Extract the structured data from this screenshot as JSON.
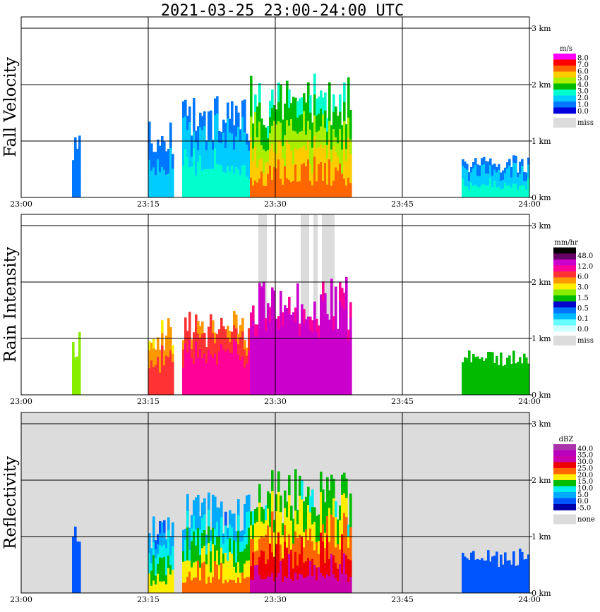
{
  "title": "2021-03-25  23:00-24:00 UTC",
  "x_ticks": [
    "23:00",
    "23:15",
    "23:30",
    "23:45",
    "24:00"
  ],
  "y_ticks": [
    "0 km",
    "1 km",
    "2 km",
    "3 km"
  ],
  "colors": {
    "background": "#ffffff",
    "missing": "#dcdcdc",
    "grid": "#000000"
  },
  "chart_data": [
    {
      "type": "heatmap",
      "ylabel": "Fall Velocity",
      "x_range": [
        "23:00",
        "24:00"
      ],
      "y_range_km": [
        0,
        3.2
      ],
      "grid": true,
      "legend": {
        "unit": "m/s",
        "labels": [
          "8.0",
          "7.0",
          "6.0",
          "5.0",
          "4.0",
          "3.0",
          "2.0",
          "1.0",
          "0.0"
        ],
        "colors": [
          "#ff00ff",
          "#ff0000",
          "#ff6600",
          "#ffcc00",
          "#aaee00",
          "#00bb00",
          "#00ffcc",
          "#00ccff",
          "#0077ff",
          "#0000dd"
        ],
        "missing_label": "miss"
      },
      "echo_summary": [
        {
          "start": "23:06",
          "end": "23:07",
          "top_km": 1.2,
          "values": "1.0-2.0"
        },
        {
          "start": "23:15",
          "end": "23:18",
          "top_km": 1.4,
          "values": "1.0-3.0"
        },
        {
          "start": "23:19",
          "end": "23:27",
          "top_km": 1.8,
          "values": "1.0-4.0"
        },
        {
          "start": "23:27",
          "end": "23:39",
          "top_km": 2.2,
          "values": "3.0-8.0"
        },
        {
          "start": "23:52",
          "end": "24:00",
          "top_km": 0.8,
          "values": "1.0-4.0"
        }
      ]
    },
    {
      "type": "heatmap",
      "ylabel": "Rain Intensity",
      "x_range": [
        "23:00",
        "24:00"
      ],
      "y_range_km": [
        0,
        3.2
      ],
      "grid": true,
      "legend": {
        "unit": "mm/hr",
        "labels": [
          "48.0",
          "12.0",
          "6.0",
          "3.0",
          "1.5",
          "0.5",
          "0.1",
          "0.0"
        ],
        "colors": [
          "#000000",
          "#660066",
          "#cc00cc",
          "#ff0099",
          "#ff3333",
          "#ff9900",
          "#ffee00",
          "#88ee00",
          "#00bb00",
          "#0000cc",
          "#0077ff",
          "#00bbff",
          "#66ffff",
          "#ccffff"
        ],
        "missing_label": "miss"
      },
      "echo_summary": [
        {
          "start": "23:06",
          "end": "23:07",
          "top_km": 1.2,
          "values": "0.1-0.5"
        },
        {
          "start": "23:15",
          "end": "23:18",
          "top_km": 1.4,
          "values": "0.5-6.0"
        },
        {
          "start": "23:19",
          "end": "23:27",
          "top_km": 1.5,
          "values": "0.5-12.0"
        },
        {
          "start": "23:27",
          "end": "23:39",
          "top_km": 2.1,
          "values": "1.5-48.0"
        },
        {
          "start": "23:52",
          "end": "24:00",
          "top_km": 0.8,
          "values": "0.0-0.1"
        }
      ],
      "missing_spans": [
        {
          "start": "23:28",
          "end": "23:29"
        },
        {
          "start": "23:33",
          "end": "23:34"
        },
        {
          "start": "23:34.5",
          "end": "23:35"
        },
        {
          "start": "23:35.5",
          "end": "23:37"
        }
      ]
    },
    {
      "type": "heatmap",
      "ylabel": "Reflectivity",
      "x_range": [
        "23:00",
        "24:00"
      ],
      "y_range_km": [
        0,
        3.2
      ],
      "grid": true,
      "legend": {
        "unit": "dBZ",
        "labels": [
          "40.0",
          "35.0",
          "30.0",
          "25.0",
          "20.0",
          "15.0",
          "10.0",
          "5.0",
          "0.0",
          "-5.0"
        ],
        "colors": [
          "#aa33aa",
          "#bb00bb",
          "#cc00aa",
          "#ee0000",
          "#ff6600",
          "#ffee00",
          "#00bb00",
          "#00eeee",
          "#00aaff",
          "#0055ff",
          "#0000aa"
        ],
        "missing_label": "none"
      },
      "echo_summary": [
        {
          "start": "23:06",
          "end": "23:07",
          "top_km": 1.2,
          "values": "-5.0-5.0"
        },
        {
          "start": "23:15",
          "end": "23:18",
          "top_km": 1.4,
          "values": "0.0-25.0"
        },
        {
          "start": "23:19",
          "end": "23:27",
          "top_km": 1.8,
          "values": "0.0-30.0"
        },
        {
          "start": "23:27",
          "end": "23:39",
          "top_km": 2.2,
          "values": "10.0-40.0"
        },
        {
          "start": "23:52",
          "end": "24:00",
          "top_km": 0.8,
          "values": "-5.0-5.0"
        }
      ]
    }
  ]
}
